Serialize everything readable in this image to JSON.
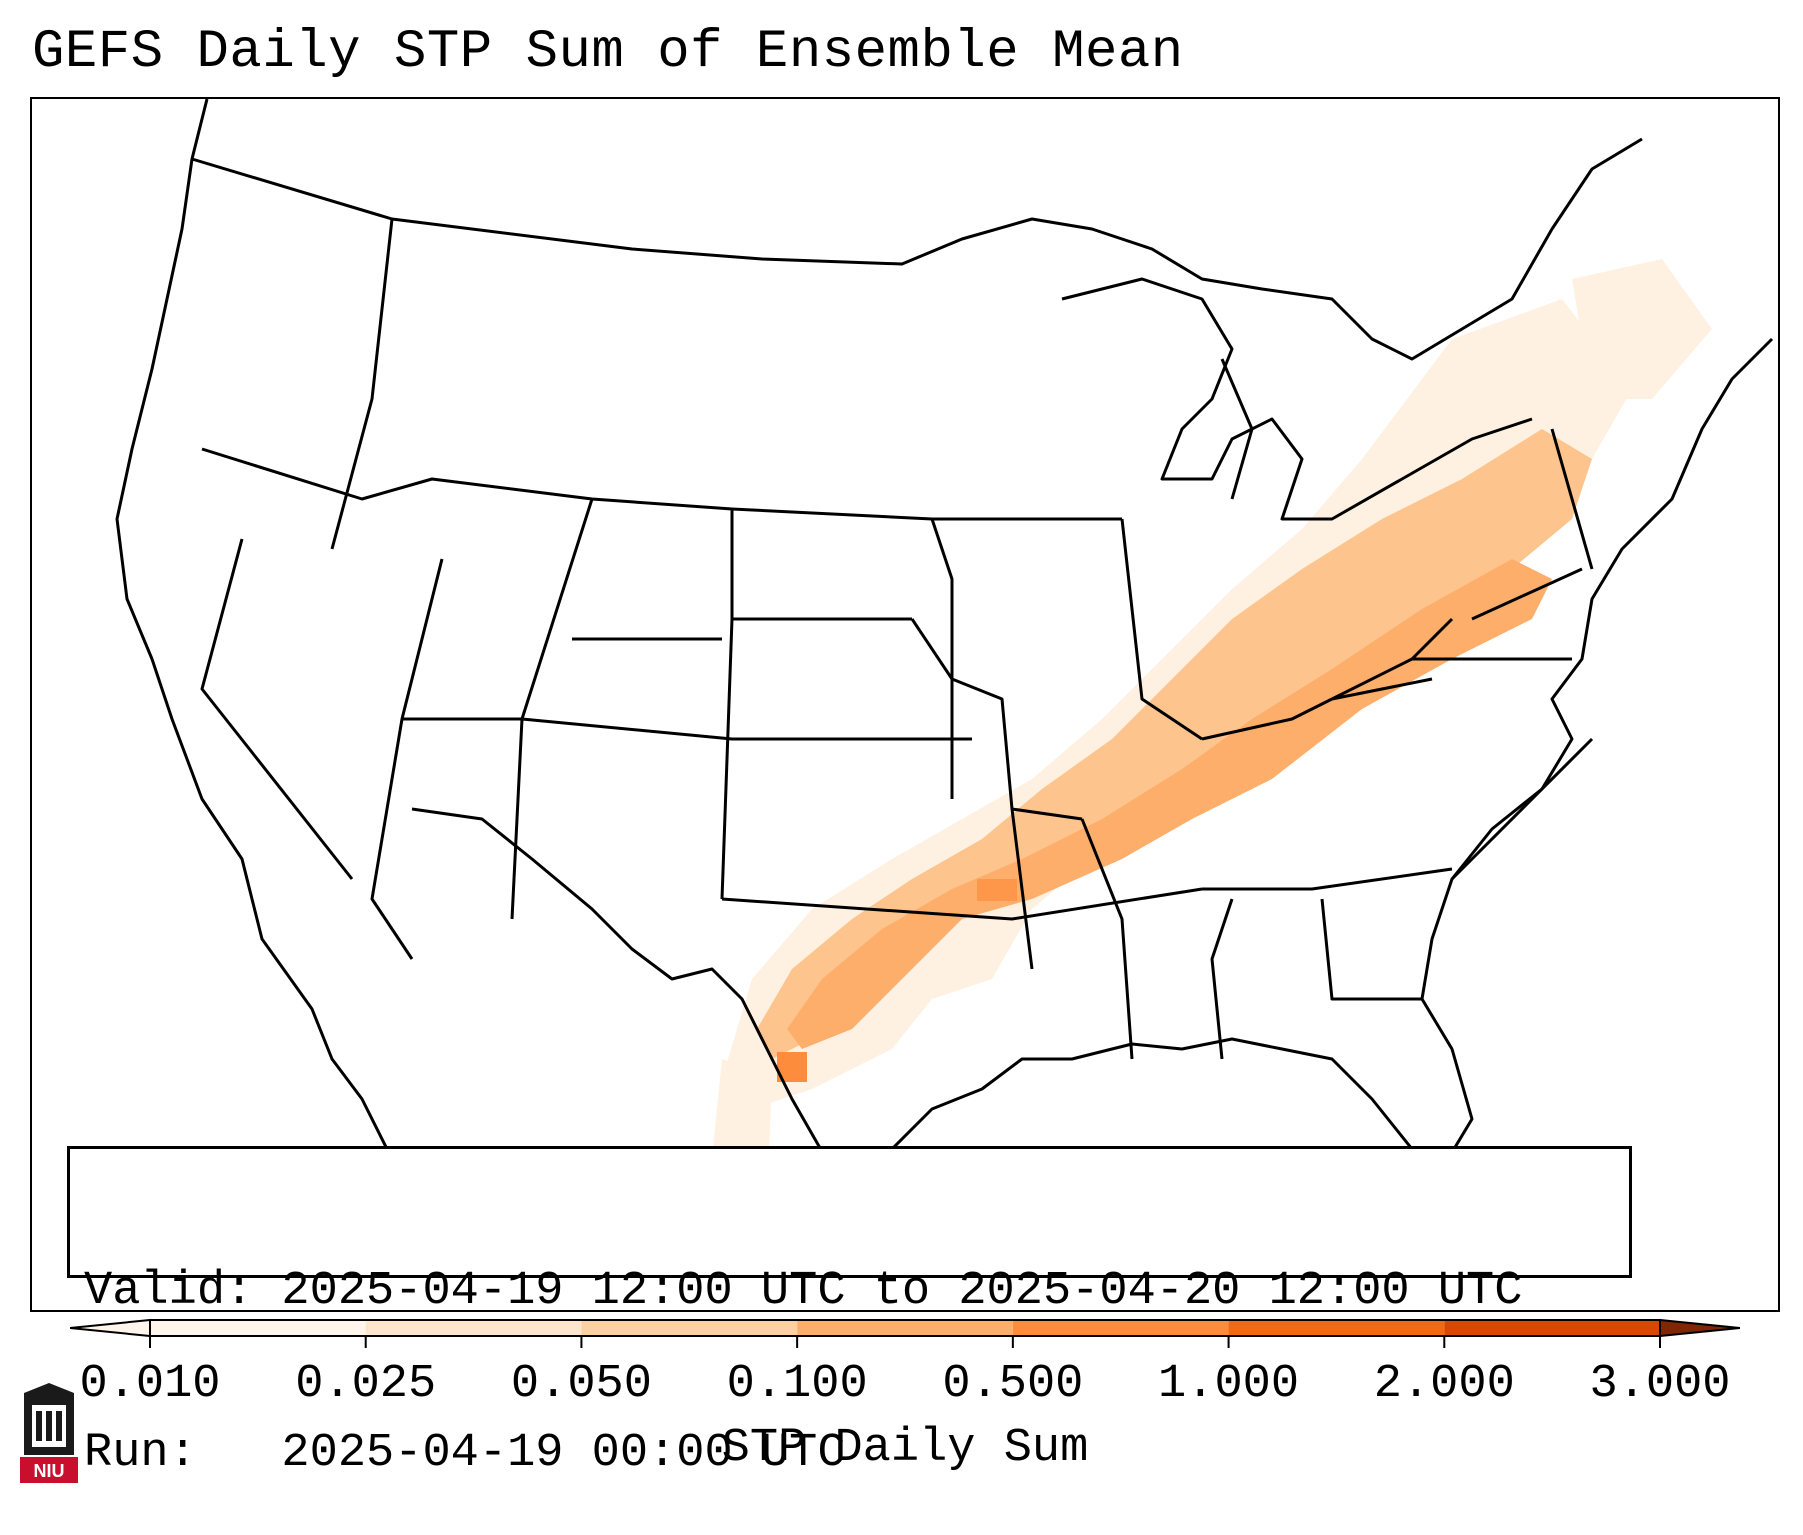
{
  "title": "GEFS Daily STP Sum of Ensemble Mean",
  "info": {
    "valid_line": "Valid: 2025-04-19 12:00 UTC to 2025-04-20 12:00 UTC",
    "run_line": "Run:   2025-04-19 00:00 UTC"
  },
  "colorbar": {
    "label": "STP Daily Sum",
    "ticks": [
      "0.010",
      "0.025",
      "0.050",
      "0.100",
      "0.500",
      "1.000",
      "2.000",
      "3.000"
    ],
    "colors": [
      "#fff5eb",
      "#fee6ce",
      "#fdd0a2",
      "#fdae6b",
      "#fd8d3c",
      "#f16913",
      "#d94801",
      "#a63603"
    ]
  },
  "logo": {
    "text": "NIU",
    "color": "#c8102e"
  }
}
